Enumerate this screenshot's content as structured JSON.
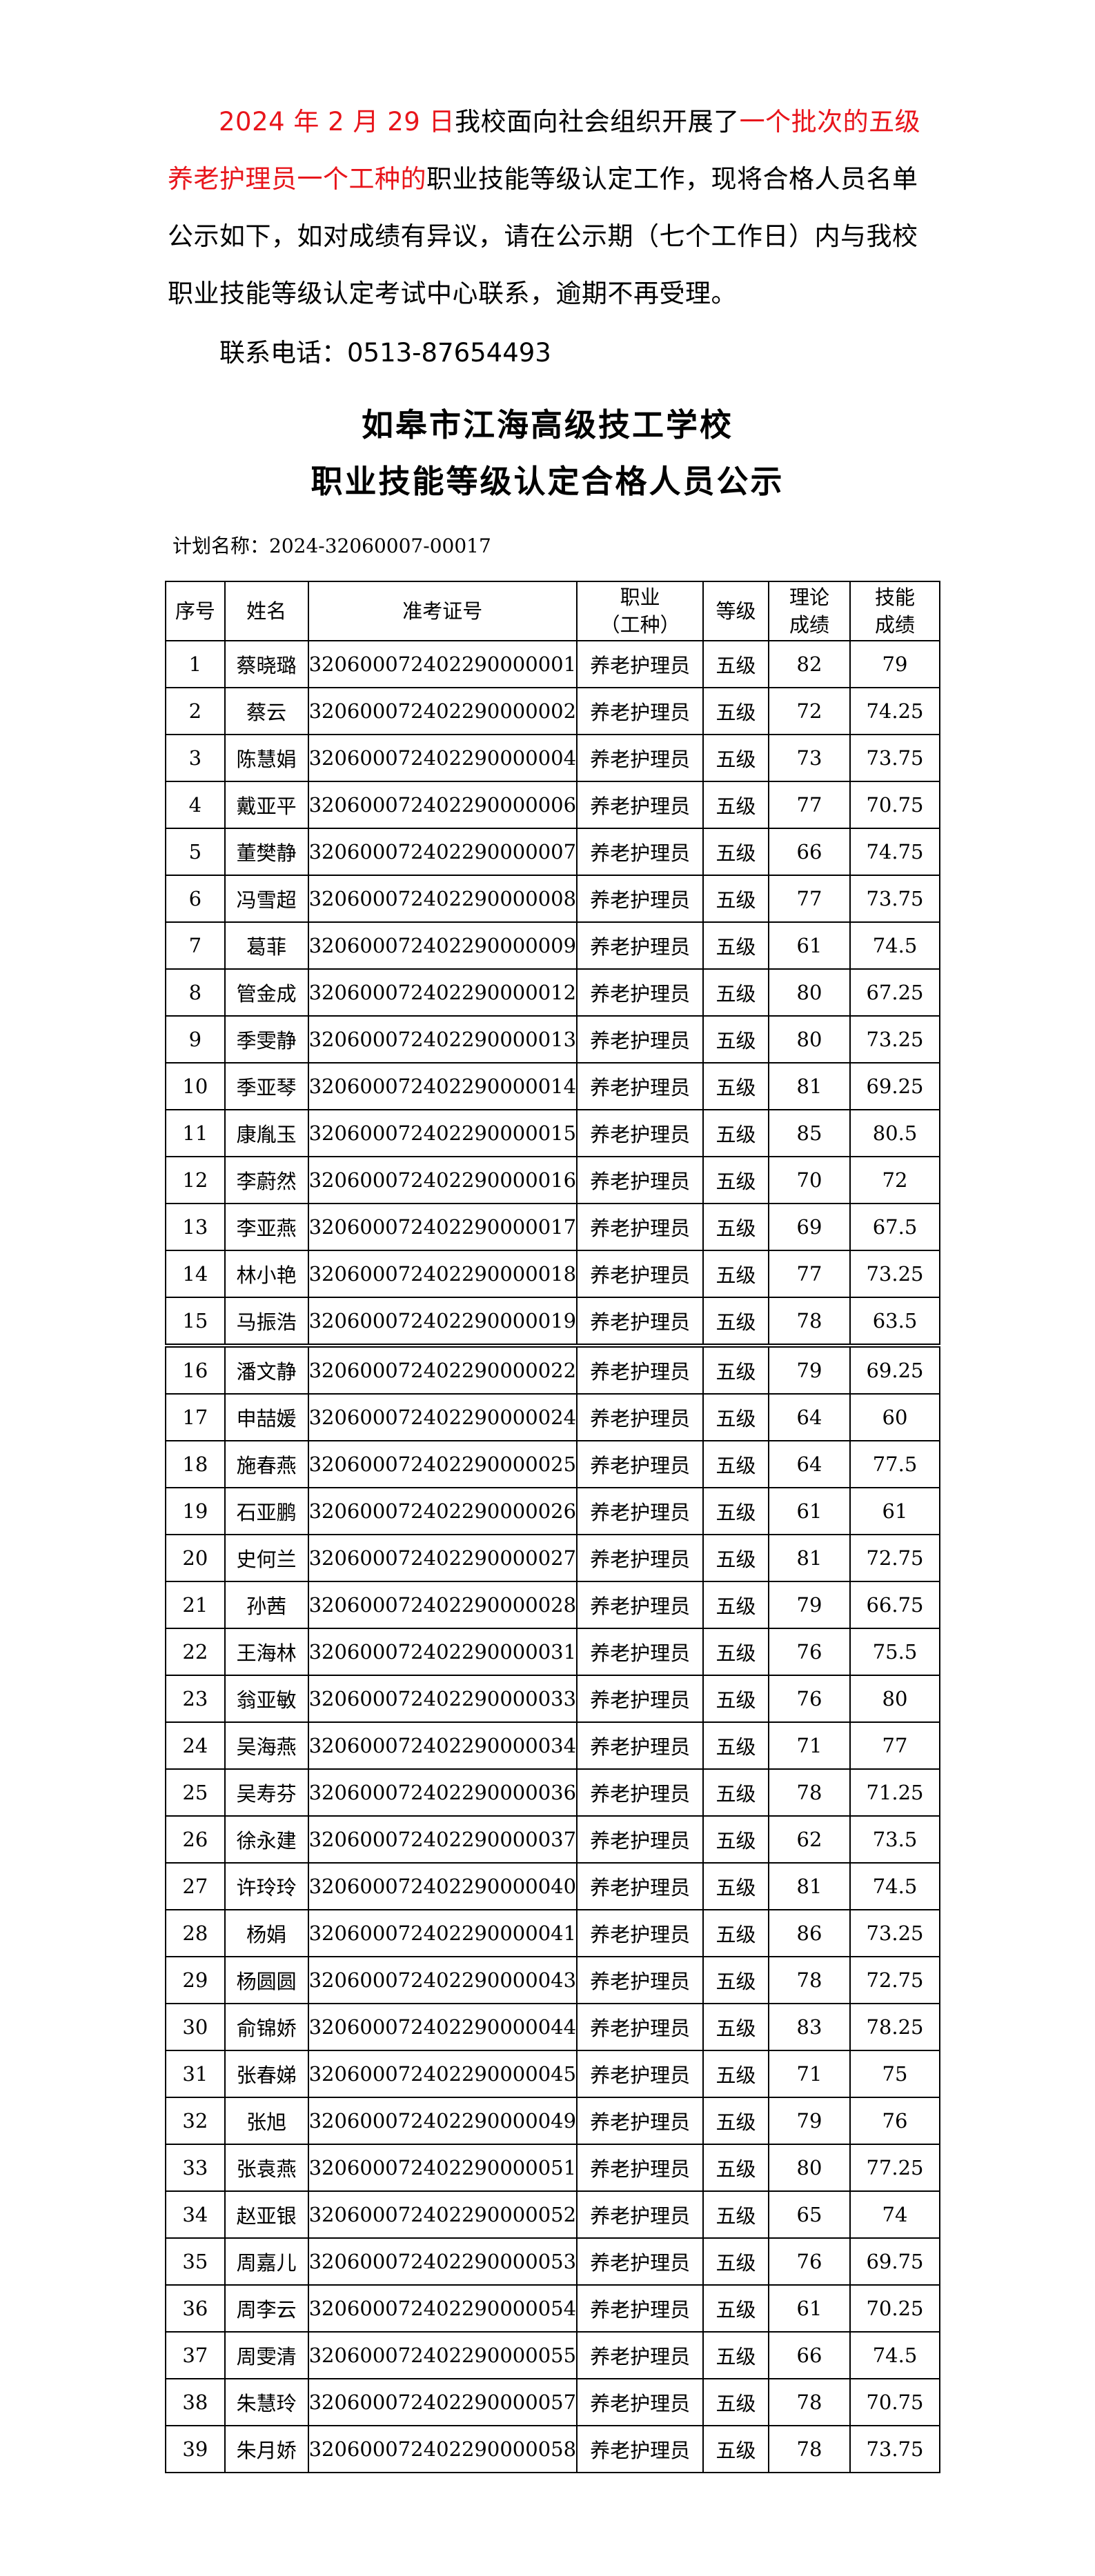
{
  "notice": {
    "date": "2024 年 2 月 29 日",
    "text1": "我校面向社会组织开展了",
    "batch": "一个批次的五级养老护理员一个工种的",
    "text2": "职业技能等级认定工作，现将合格人员名单公示如下，如对成绩有异议，请在公示期（七个工作日）内与我校职业技能等级认定考试中心联系，逾期不再受理。",
    "contact": "联系电话：0513-87654493"
  },
  "title_line1": "如皋市江海高级技工学校",
  "title_line2": "职业技能等级认定合格人员公示",
  "plan_label": "计划名称：2024-32060007-00017",
  "colors": {
    "highlight": "#e8151b"
  },
  "table": {
    "headers": {
      "no": "序号",
      "name": "姓名",
      "ticket": "准考证号",
      "occupation_line1": "职业",
      "occupation_line2": "（工种）",
      "level": "等级",
      "theory_line1": "理论",
      "theory_line2": "成绩",
      "skill_line1": "技能",
      "skill_line2": "成绩"
    },
    "rows": [
      [
        "1",
        "蔡晓璐",
        "320600072402290000001",
        "养老护理员",
        "五级",
        "82",
        "79"
      ],
      [
        "2",
        "蔡云",
        "320600072402290000002",
        "养老护理员",
        "五级",
        "72",
        "74.25"
      ],
      [
        "3",
        "陈慧娟",
        "320600072402290000004",
        "养老护理员",
        "五级",
        "73",
        "73.75"
      ],
      [
        "4",
        "戴亚平",
        "320600072402290000006",
        "养老护理员",
        "五级",
        "77",
        "70.75"
      ],
      [
        "5",
        "董樊静",
        "320600072402290000007",
        "养老护理员",
        "五级",
        "66",
        "74.75"
      ],
      [
        "6",
        "冯雪超",
        "320600072402290000008",
        "养老护理员",
        "五级",
        "77",
        "73.75"
      ],
      [
        "7",
        "葛菲",
        "320600072402290000009",
        "养老护理员",
        "五级",
        "61",
        "74.5"
      ],
      [
        "8",
        "管金成",
        "320600072402290000012",
        "养老护理员",
        "五级",
        "80",
        "67.25"
      ],
      [
        "9",
        "季雯静",
        "320600072402290000013",
        "养老护理员",
        "五级",
        "80",
        "73.25"
      ],
      [
        "10",
        "季亚琴",
        "320600072402290000014",
        "养老护理员",
        "五级",
        "81",
        "69.25"
      ],
      [
        "11",
        "康胤玉",
        "320600072402290000015",
        "养老护理员",
        "五级",
        "85",
        "80.5"
      ],
      [
        "12",
        "李蔚然",
        "320600072402290000016",
        "养老护理员",
        "五级",
        "70",
        "72"
      ],
      [
        "13",
        "李亚燕",
        "320600072402290000017",
        "养老护理员",
        "五级",
        "69",
        "67.5"
      ],
      [
        "14",
        "林小艳",
        "320600072402290000018",
        "养老护理员",
        "五级",
        "77",
        "73.25"
      ],
      [
        "15",
        "马振浩",
        "320600072402290000019",
        "养老护理员",
        "五级",
        "78",
        "63.5"
      ],
      [
        "16",
        "潘文静",
        "320600072402290000022",
        "养老护理员",
        "五级",
        "79",
        "69.25"
      ],
      [
        "17",
        "申喆媛",
        "320600072402290000024",
        "养老护理员",
        "五级",
        "64",
        "60"
      ],
      [
        "18",
        "施春燕",
        "320600072402290000025",
        "养老护理员",
        "五级",
        "64",
        "77.5"
      ],
      [
        "19",
        "石亚鹏",
        "320600072402290000026",
        "养老护理员",
        "五级",
        "61",
        "61"
      ],
      [
        "20",
        "史何兰",
        "320600072402290000027",
        "养老护理员",
        "五级",
        "81",
        "72.75"
      ],
      [
        "21",
        "孙茜",
        "320600072402290000028",
        "养老护理员",
        "五级",
        "79",
        "66.75"
      ],
      [
        "22",
        "王海林",
        "320600072402290000031",
        "养老护理员",
        "五级",
        "76",
        "75.5"
      ],
      [
        "23",
        "翁亚敏",
        "320600072402290000033",
        "养老护理员",
        "五级",
        "76",
        "80"
      ],
      [
        "24",
        "吴海燕",
        "320600072402290000034",
        "养老护理员",
        "五级",
        "71",
        "77"
      ],
      [
        "25",
        "吴寿芬",
        "320600072402290000036",
        "养老护理员",
        "五级",
        "78",
        "71.25"
      ],
      [
        "26",
        "徐永建",
        "320600072402290000037",
        "养老护理员",
        "五级",
        "62",
        "73.5"
      ],
      [
        "27",
        "许玲玲",
        "320600072402290000040",
        "养老护理员",
        "五级",
        "81",
        "74.5"
      ],
      [
        "28",
        "杨娟",
        "320600072402290000041",
        "养老护理员",
        "五级",
        "86",
        "73.25"
      ],
      [
        "29",
        "杨圆圆",
        "320600072402290000043",
        "养老护理员",
        "五级",
        "78",
        "72.75"
      ],
      [
        "30",
        "俞锦娇",
        "320600072402290000044",
        "养老护理员",
        "五级",
        "83",
        "78.25"
      ],
      [
        "31",
        "张春娣",
        "320600072402290000045",
        "养老护理员",
        "五级",
        "71",
        "75"
      ],
      [
        "32",
        "张旭",
        "320600072402290000049",
        "养老护理员",
        "五级",
        "79",
        "76"
      ],
      [
        "33",
        "张袁燕",
        "320600072402290000051",
        "养老护理员",
        "五级",
        "80",
        "77.25"
      ],
      [
        "34",
        "赵亚银",
        "320600072402290000052",
        "养老护理员",
        "五级",
        "65",
        "74"
      ],
      [
        "35",
        "周嘉儿",
        "320600072402290000053",
        "养老护理员",
        "五级",
        "76",
        "69.75"
      ],
      [
        "36",
        "周李云",
        "320600072402290000054",
        "养老护理员",
        "五级",
        "61",
        "70.25"
      ],
      [
        "37",
        "周雯清",
        "320600072402290000055",
        "养老护理员",
        "五级",
        "66",
        "74.5"
      ],
      [
        "38",
        "朱慧玲",
        "320600072402290000057",
        "养老护理员",
        "五级",
        "78",
        "70.75"
      ],
      [
        "39",
        "朱月娇",
        "320600072402290000058",
        "养老护理员",
        "五级",
        "78",
        "73.75"
      ]
    ]
  }
}
